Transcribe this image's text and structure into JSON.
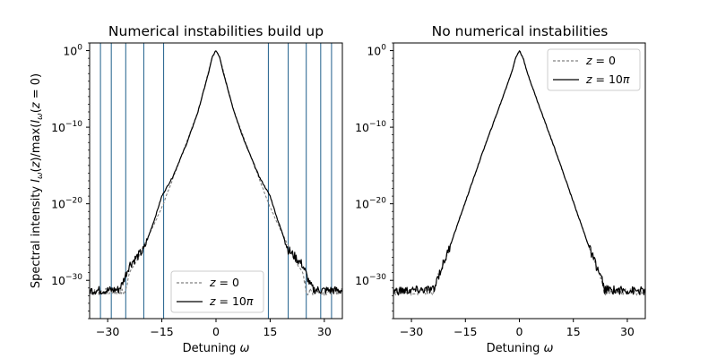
{
  "ylabel": "Spectral intensity I_ω(z)/max(I_ω(z = 0)",
  "xlabel": "Detuning ω",
  "chart_data": [
    {
      "type": "line",
      "title": "Numerical instabilities build up",
      "xlabel": "Detuning ω",
      "ylabel": "Spectral intensity I_ω(z)/max(I_ω(z = 0)",
      "x_ticks": [
        -30,
        -15,
        0,
        15,
        30
      ],
      "x_tick_labels": [
        "−30",
        "−15",
        "0",
        "15",
        "30"
      ],
      "y_ticks": [
        1,
        1e-10,
        1e-20,
        1e-30
      ],
      "y_tick_labels": [
        "10",
        "10",
        "10",
        "10"
      ],
      "y_tick_exponents": [
        "0",
        "−10",
        "−20",
        "−30"
      ],
      "xlim": [
        -35,
        35
      ],
      "ylim_log10": [
        -35,
        1
      ],
      "yscale": "log",
      "grid": false,
      "legend_position": "lower-center",
      "vertical_lines_x": [
        -32,
        -29,
        -25,
        -20,
        -14.5,
        14.5,
        20,
        25,
        29,
        32
      ],
      "vertical_line_color": "#1f5f8b",
      "series": [
        {
          "name": "z = 0",
          "style": "dashed",
          "color": "#808080",
          "x": [
            -35,
            -25,
            -24.5,
            -24,
            -22,
            -15,
            -5,
            -2,
            -1,
            0,
            1,
            2,
            5,
            15,
            22,
            24,
            24.5,
            25,
            35
          ],
          "log10_y": [
            -31.5,
            -31.5,
            -30,
            -29,
            -27.5,
            -20.5,
            -8,
            -2.6,
            -0.8,
            0,
            -0.8,
            -2.6,
            -8,
            -20.5,
            -27.5,
            -29,
            -30,
            -31.5,
            -31.5
          ]
        },
        {
          "name": "z = 10π",
          "style": "solid",
          "color": "#000000",
          "x": [
            -35,
            -30,
            -27,
            -26,
            -24,
            -20,
            -17,
            -15,
            -12,
            -8,
            -5,
            -2,
            -1,
            0,
            1,
            2,
            5,
            8,
            12,
            15,
            17,
            20,
            24,
            26,
            27,
            30,
            35
          ],
          "log10_y": [
            -31.3,
            -31.3,
            -31.2,
            -30.5,
            -28,
            -26,
            -22,
            -19,
            -16.5,
            -12,
            -8,
            -2.8,
            -0.8,
            0,
            -0.8,
            -2.8,
            -8,
            -12,
            -16.5,
            -19,
            -22,
            -26,
            -28,
            -30.5,
            -31.2,
            -31.3,
            -31.3
          ]
        }
      ]
    },
    {
      "type": "line",
      "title": "No numerical instabilities",
      "xlabel": "Detuning ω",
      "x_ticks": [
        -30,
        -15,
        0,
        15,
        30
      ],
      "x_tick_labels": [
        "−30",
        "−15",
        "0",
        "15",
        "30"
      ],
      "y_ticks": [
        1,
        1e-10,
        1e-20,
        1e-30
      ],
      "y_tick_labels": [
        "10",
        "10",
        "10",
        "10"
      ],
      "y_tick_exponents": [
        "0",
        "−10",
        "−20",
        "−30"
      ],
      "xlim": [
        -35,
        35
      ],
      "ylim_log10": [
        -35,
        1
      ],
      "yscale": "log",
      "grid": false,
      "legend_position": "upper-right",
      "vertical_lines_x": [],
      "series": [
        {
          "name": "z = 0",
          "style": "dashed",
          "color": "#808080",
          "x": [
            -35,
            -23.5,
            -23.2,
            -20,
            -10,
            -5,
            -2,
            -1,
            0,
            1,
            2,
            5,
            10,
            20,
            23.2,
            23.5,
            35
          ],
          "log10_y": [
            -31.5,
            -31.5,
            -30.3,
            -26.5,
            -13,
            -6.6,
            -2.6,
            -0.9,
            0,
            -0.9,
            -2.6,
            -6.6,
            -13,
            -26.5,
            -30.3,
            -31.5,
            -31.5
          ],
          "note_hidden": ""
        },
        {
          "name": "z = 10π",
          "style": "solid",
          "color": "#000000",
          "x": [
            -35,
            -23.5,
            -23.2,
            -20,
            -10,
            -5,
            -2,
            -1,
            0,
            1,
            2,
            5,
            10,
            20,
            23.2,
            23.5,
            35
          ],
          "log10_y": [
            -31.4,
            -31.2,
            -30.2,
            -26.5,
            -13,
            -6.6,
            -2.6,
            -0.9,
            0,
            -0.9,
            -2.6,
            -6.6,
            -13,
            -26.5,
            -30.2,
            -31.2,
            -31.4
          ]
        }
      ]
    }
  ]
}
